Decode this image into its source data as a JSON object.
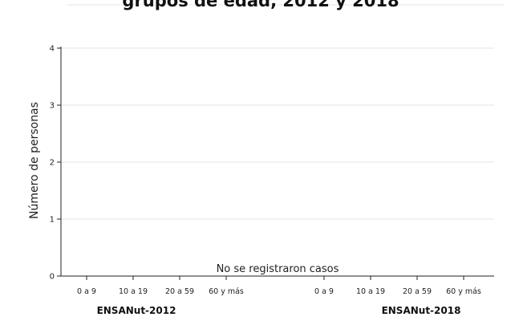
{
  "chart_data": {
    "type": "bar",
    "title": "grupos de edad, 2012 y 2018",
    "ylabel": "Número de personas",
    "ylim": [
      0,
      4
    ],
    "yticks": [
      0,
      1,
      2,
      3,
      4
    ],
    "grid": true,
    "groups": [
      {
        "label": "ENSANut-2012",
        "categories": [
          "0 a 9",
          "10 a 19",
          "20 a 59",
          "60 y más"
        ],
        "values": [
          0,
          0,
          0,
          0
        ]
      },
      {
        "label": "ENSANut-2018",
        "categories": [
          "0 a 9",
          "10 a 19",
          "20 a 59",
          "60 y más"
        ],
        "values": [
          0,
          0,
          0,
          0
        ]
      }
    ],
    "annotation": "No se registraron casos"
  },
  "colors": {
    "grid": "#e6e6e6",
    "axis": "#222222",
    "background": "#ffffff"
  }
}
